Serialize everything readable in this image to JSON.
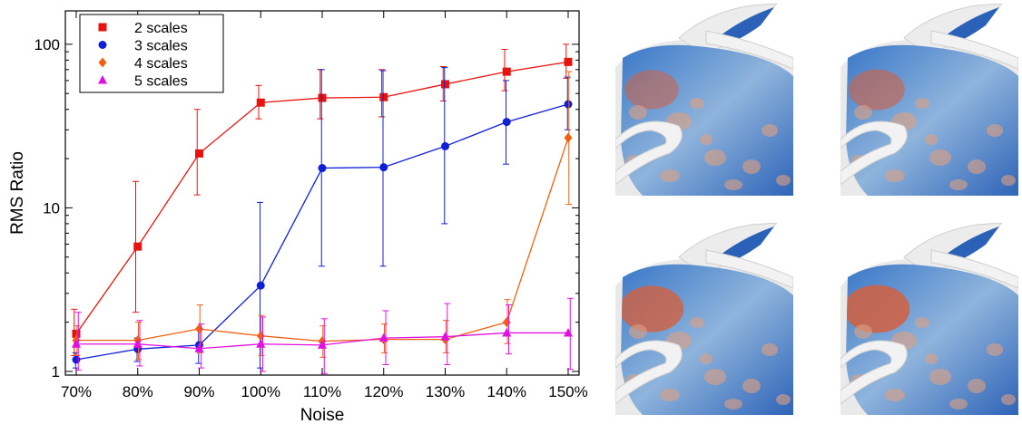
{
  "chart_data": {
    "type": "line",
    "xlabel": "Noise",
    "ylabel": "RMS Ratio",
    "y_scale": "log",
    "ylim": [
      0.95,
      160
    ],
    "yticks": [
      1,
      10,
      100
    ],
    "ytick_labels": [
      "1",
      "10",
      "100"
    ],
    "categories": [
      "70%",
      "80%",
      "90%",
      "100%",
      "110%",
      "120%",
      "130%",
      "140%",
      "150%"
    ],
    "legend_position": "top-left",
    "series": [
      {
        "name": "2 scales",
        "color": "#e8120f",
        "marker": "square",
        "values": [
          1.7,
          5.8,
          21.5,
          44,
          47,
          47.5,
          57,
          68,
          78
        ],
        "err_low": [
          1.25,
          2.3,
          12,
          35,
          35,
          36,
          45,
          52,
          62
        ],
        "err_high": [
          2.4,
          14.5,
          40,
          56,
          70,
          70,
          73,
          93,
          100
        ]
      },
      {
        "name": "3 scales",
        "color": "#1020d8",
        "marker": "circle",
        "values": [
          1.18,
          1.37,
          1.45,
          3.35,
          17.5,
          17.7,
          23.8,
          33.5,
          43
        ],
        "err_low": [
          1.05,
          1.15,
          1.12,
          1.05,
          4.4,
          4.4,
          8,
          18.5,
          30
        ],
        "err_high": [
          1.3,
          1.6,
          1.8,
          10.8,
          70,
          69,
          72,
          60,
          63
        ]
      },
      {
        "name": "4 scales",
        "color": "#f06010",
        "marker": "diamond",
        "values": [
          1.55,
          1.55,
          1.82,
          1.65,
          1.53,
          1.57,
          1.57,
          2.0,
          26.8
        ],
        "err_low": [
          1.25,
          1.18,
          1.3,
          1.25,
          1.22,
          1.3,
          1.3,
          1.48,
          10.5
        ],
        "err_high": [
          1.9,
          2.0,
          2.55,
          2.2,
          1.9,
          1.95,
          2.05,
          2.75,
          68
        ]
      },
      {
        "name": "5 scales",
        "color": "#e010e0",
        "marker": "triangle",
        "values": [
          1.47,
          1.47,
          1.38,
          1.47,
          1.45,
          1.6,
          1.63,
          1.72,
          1.72
        ],
        "err_low": [
          1.02,
          1.08,
          1.05,
          1.0,
          0.97,
          1.1,
          1.1,
          1.28,
          1.03
        ],
        "err_high": [
          2.3,
          2.05,
          1.95,
          2.15,
          2.1,
          2.35,
          2.6,
          2.55,
          2.8
        ]
      }
    ]
  },
  "renders": [
    {
      "id": "top-left"
    },
    {
      "id": "top-right"
    },
    {
      "id": "bottom-left"
    },
    {
      "id": "bottom-right"
    }
  ]
}
